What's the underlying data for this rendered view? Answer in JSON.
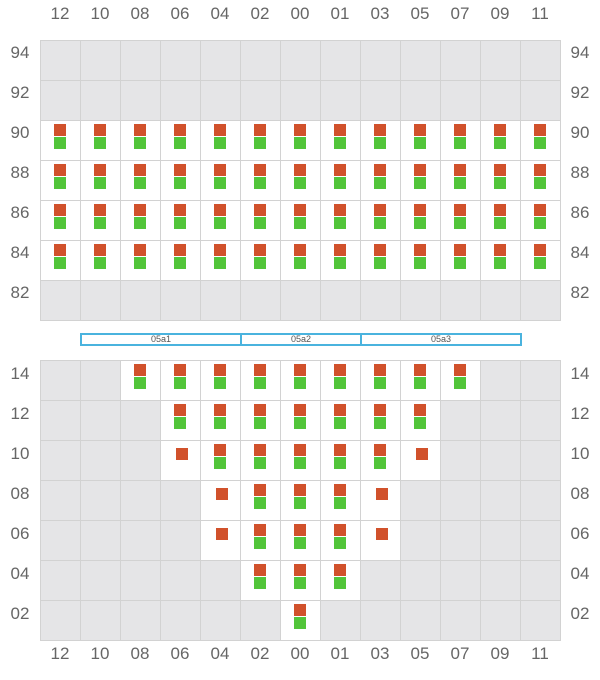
{
  "columns": [
    "12",
    "10",
    "08",
    "06",
    "04",
    "02",
    "00",
    "01",
    "03",
    "05",
    "07",
    "09",
    "11"
  ],
  "colors": {
    "red": "#d1512b",
    "green": "#52c53a",
    "zone_border": "#4ab3de",
    "inactive": "#e5e5e7"
  },
  "upper_block": {
    "rows": [
      {
        "label": "94",
        "cells": [
          "",
          "",
          "",
          "",
          "",
          "",
          "",
          "",
          "",
          "",
          "",
          "",
          ""
        ]
      },
      {
        "label": "92",
        "cells": [
          "",
          "",
          "",
          "",
          "",
          "",
          "",
          "",
          "",
          "",
          "",
          "",
          ""
        ]
      },
      {
        "label": "90",
        "cells": [
          "rg",
          "rg",
          "rg",
          "rg",
          "rg",
          "rg",
          "rg",
          "rg",
          "rg",
          "rg",
          "rg",
          "rg",
          "rg"
        ]
      },
      {
        "label": "88",
        "cells": [
          "rg",
          "rg",
          "rg",
          "rg",
          "rg",
          "rg",
          "rg",
          "rg",
          "rg",
          "rg",
          "rg",
          "rg",
          "rg"
        ]
      },
      {
        "label": "86",
        "cells": [
          "rg",
          "rg",
          "rg",
          "rg",
          "rg",
          "rg",
          "rg",
          "rg",
          "rg",
          "rg",
          "rg",
          "rg",
          "rg"
        ]
      },
      {
        "label": "84",
        "cells": [
          "rg",
          "rg",
          "rg",
          "rg",
          "rg",
          "rg",
          "rg",
          "rg",
          "rg",
          "rg",
          "rg",
          "rg",
          "rg"
        ]
      },
      {
        "label": "82",
        "cells": [
          "",
          "",
          "",
          "",
          "",
          "",
          "",
          "",
          "",
          "",
          "",
          "",
          ""
        ]
      }
    ]
  },
  "zones": [
    {
      "label": "05a1",
      "span": 4
    },
    {
      "label": "05a2",
      "span": 3
    },
    {
      "label": "05a3",
      "span": 4
    }
  ],
  "lower_block": {
    "rows": [
      {
        "label": "14",
        "cells": [
          "",
          "",
          "rg",
          "rg",
          "rg",
          "rg",
          "rg",
          "rg",
          "rg",
          "rg",
          "rg",
          "",
          ""
        ]
      },
      {
        "label": "12",
        "cells": [
          "",
          "",
          "",
          "rg",
          "rg",
          "rg",
          "rg",
          "rg",
          "rg",
          "rg",
          "",
          "",
          ""
        ]
      },
      {
        "label": "10",
        "cells": [
          "",
          "",
          "",
          "r",
          "rg",
          "rg",
          "rg",
          "rg",
          "rg",
          "r",
          "",
          "",
          ""
        ]
      },
      {
        "label": "08",
        "cells": [
          "",
          "",
          "",
          "",
          "r",
          "rg",
          "rg",
          "rg",
          "r",
          "",
          "",
          "",
          ""
        ]
      },
      {
        "label": "06",
        "cells": [
          "",
          "",
          "",
          "",
          "r",
          "rg",
          "rg",
          "rg",
          "r",
          "",
          "",
          "",
          ""
        ]
      },
      {
        "label": "04",
        "cells": [
          "",
          "",
          "",
          "",
          "",
          "rg",
          "rg",
          "rg",
          "",
          "",
          "",
          "",
          ""
        ]
      },
      {
        "label": "02",
        "cells": [
          "",
          "",
          "",
          "",
          "",
          "",
          "rg",
          "",
          "",
          "",
          "",
          "",
          ""
        ]
      }
    ]
  }
}
